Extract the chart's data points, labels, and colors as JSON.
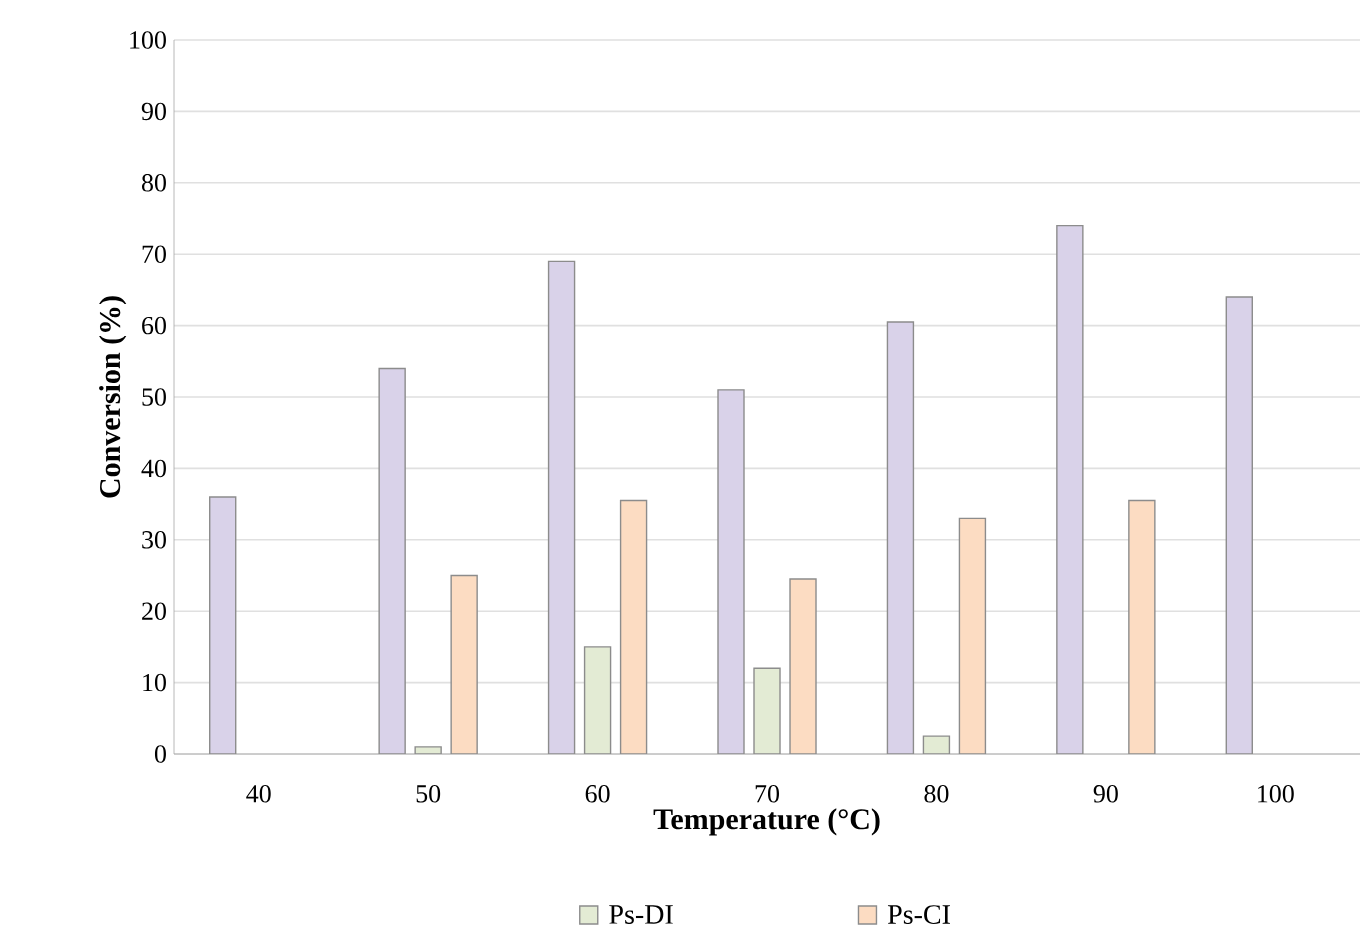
{
  "chart_data": {
    "type": "bar",
    "xlabel": "Temperature (°C)",
    "ylabel": "Conversion (%)",
    "categories": [
      "40",
      "50",
      "60",
      "70",
      "80",
      "90",
      "100"
    ],
    "series": [
      {
        "color": "#d9d2e9",
        "values": [
          36,
          54,
          69,
          51,
          60.5,
          74,
          64
        ]
      },
      {
        "name": "Ps-DI",
        "color": "#e3ebd4",
        "values": [
          null,
          1,
          15,
          12,
          2.5,
          null,
          null
        ]
      },
      {
        "name": "Ps-CI",
        "color": "#fcdcc2",
        "values": [
          null,
          25,
          35.5,
          24.5,
          33,
          35.5,
          null
        ]
      }
    ],
    "ylim": [
      0,
      100
    ],
    "yticks": [
      0,
      10,
      20,
      30,
      40,
      50,
      60,
      70,
      80,
      90,
      100
    ],
    "grid": "y",
    "legend": "bottom"
  }
}
